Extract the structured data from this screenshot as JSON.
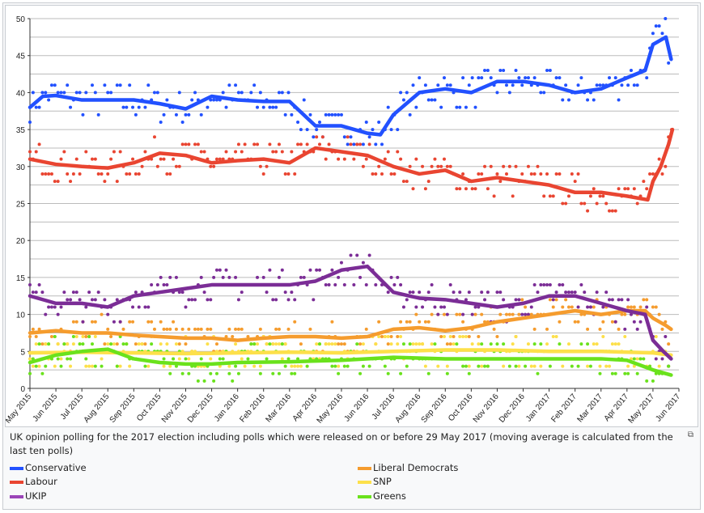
{
  "caption": "UK opinion polling for the 2017 election including polls which were released on or before 29 May 2017 (moving average is calculated from the last ten polls)",
  "enlarge_icon": "enlarge-icon",
  "chart_data": {
    "type": "line",
    "title": "",
    "xlabel": "",
    "ylabel": "",
    "ylim": [
      0,
      50
    ],
    "yticks": [
      "0",
      "5",
      "10",
      "15",
      "20",
      "25",
      "30",
      "35",
      "40",
      "45",
      "50"
    ],
    "xticks": [
      "May 2015",
      "Jun 2015",
      "Jul 2015",
      "Aug 2015",
      "Sep 2015",
      "Oct 2015",
      "Nov 2015",
      "Dec 2015",
      "Jan 2016",
      "Feb 2016",
      "Mar 2016",
      "Apr 2016",
      "May 2016",
      "Jun 2016",
      "Jul 2016",
      "Aug 2016",
      "Sep 2016",
      "Oct 2016",
      "Nov 2016",
      "Dec 2016",
      "Jan 2017",
      "Feb 2017",
      "Mar 2017",
      "Apr 2017",
      "May 2017",
      "Jun 2017"
    ],
    "x_unit": "months since May 2015",
    "grid": true,
    "legend_placement": "below",
    "series": [
      {
        "name": "Conservative",
        "color": "#2251ff",
        "x": [
          0,
          0.5,
          1,
          2,
          3,
          4,
          5,
          6,
          7,
          8,
          9,
          10,
          11,
          12,
          13,
          13.5,
          14,
          15,
          16,
          17,
          18,
          19,
          20,
          21,
          22,
          23,
          23.7,
          24,
          24.5,
          24.7
        ],
        "values": [
          38,
          39.5,
          39.6,
          39,
          39,
          39,
          38.5,
          37.8,
          39.5,
          39,
          38.8,
          38.8,
          35.5,
          35.5,
          34.5,
          34.3,
          37,
          40,
          40.5,
          40,
          41.5,
          41.5,
          41,
          40,
          40.5,
          42,
          43,
          46.5,
          47.5,
          44.5
        ]
      },
      {
        "name": "Labour",
        "color": "#e94531",
        "x": [
          0,
          1,
          2,
          3,
          4,
          5,
          6,
          7,
          8,
          9,
          10,
          11,
          12,
          13,
          14,
          15,
          16,
          17,
          18,
          19,
          20,
          21,
          22,
          23,
          23.8,
          24,
          24.3,
          24.6,
          24.75
        ],
        "values": [
          31,
          30.3,
          30,
          29.8,
          30.5,
          31.8,
          31.5,
          30.5,
          30.8,
          31,
          30.5,
          32.5,
          32,
          31.5,
          30,
          29,
          29.5,
          28,
          28.5,
          28,
          27.5,
          26.5,
          26.5,
          26,
          25.5,
          28,
          30,
          33,
          35
        ]
      },
      {
        "name": "Liberal Democrats",
        "color": "#f59c2e",
        "x": [
          0,
          1,
          2,
          3,
          4,
          5,
          6,
          7,
          8,
          9,
          10,
          11,
          12,
          13,
          14,
          15,
          16,
          17,
          18,
          19,
          20,
          21,
          22,
          23,
          23.7,
          24,
          24.5,
          24.7
        ],
        "values": [
          7.5,
          7.8,
          7.5,
          7.5,
          7.2,
          7,
          6.8,
          6.8,
          6.5,
          6.8,
          7,
          7,
          6.8,
          7,
          8,
          8.2,
          7.8,
          8.2,
          9,
          9.5,
          10,
          10.5,
          10,
          10.5,
          10.5,
          9.5,
          8.5,
          8
        ]
      },
      {
        "name": "SNP",
        "color": "#fde04a",
        "x": [
          0,
          2,
          4,
          6,
          8,
          10,
          12,
          14,
          16,
          18,
          20,
          22,
          24,
          24.7
        ],
        "values": [
          4.8,
          4.9,
          4.8,
          4.7,
          4.8,
          4.9,
          4.8,
          5,
          5.2,
          5.2,
          5,
          5,
          4.8,
          4.5
        ]
      },
      {
        "name": "UKIP",
        "color": "#7b2d96",
        "x": [
          0,
          1,
          2,
          3,
          4,
          5,
          6,
          7,
          8,
          9,
          10,
          11,
          12,
          13,
          14,
          15,
          16,
          17,
          18,
          19,
          20,
          21,
          22,
          23,
          23.7,
          24,
          24.4,
          24.7
        ],
        "values": [
          12.5,
          11.5,
          11.5,
          11,
          12.5,
          13,
          13.5,
          14,
          14,
          14,
          14,
          14.5,
          16,
          16.5,
          13,
          12.2,
          12,
          11.5,
          11,
          11.5,
          12.5,
          12.5,
          11.5,
          10.5,
          10,
          6.5,
          5,
          4
        ]
      },
      {
        "name": "Greens",
        "color": "#6ae21c",
        "x": [
          0,
          1,
          2,
          3,
          4,
          5,
          6,
          7,
          8,
          10,
          12,
          14,
          16,
          18,
          20,
          22,
          23,
          24,
          24.7
        ],
        "values": [
          3.5,
          4.5,
          5,
          5.3,
          4,
          3.5,
          3.3,
          3.3,
          3.5,
          3.6,
          3.8,
          4.2,
          4,
          4,
          4,
          4,
          3.8,
          2.5,
          1.8
        ]
      }
    ]
  },
  "legend": [
    {
      "label": "Conservative",
      "color": "#2251ff"
    },
    {
      "label": "Labour",
      "color": "#e94531"
    },
    {
      "label": "UKIP",
      "color": "#9b45b8"
    },
    {
      "label": "Liberal Democrats",
      "color": "#f59c2e"
    },
    {
      "label": "SNP",
      "color": "#fde04a"
    },
    {
      "label": "Greens",
      "color": "#6ae21c"
    }
  ]
}
